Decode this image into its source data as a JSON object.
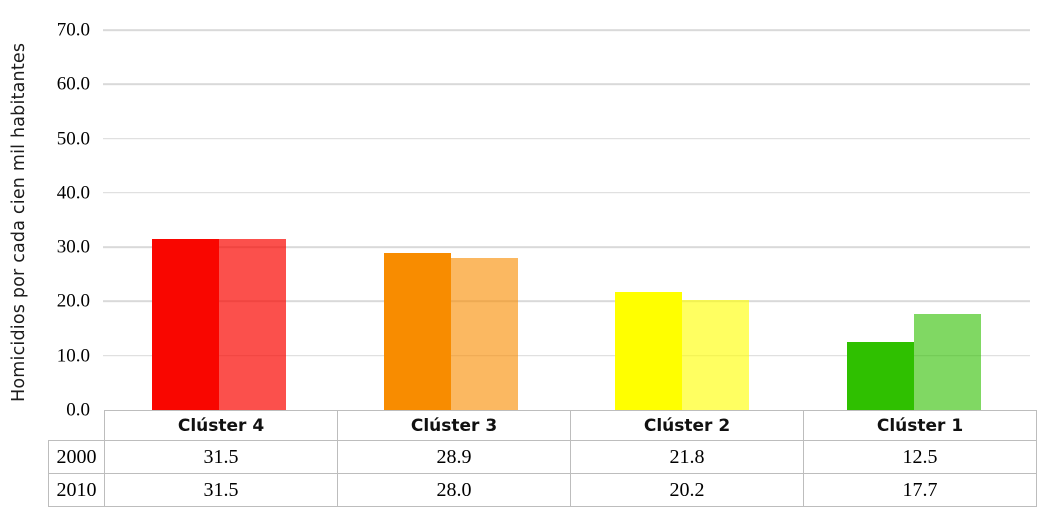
{
  "chart_data": {
    "type": "bar",
    "title": "",
    "xlabel": "",
    "ylabel": "Homicidios por cada cien mil habitantes",
    "ylim": [
      0,
      70
    ],
    "ytick_interval": 10,
    "ytick_labels": [
      "70.0",
      "60.0",
      "50.0",
      "40.0",
      "30.0",
      "20.0",
      "10.0",
      "0.0"
    ],
    "grid": "horizontal",
    "gridline_color": "#d9d9d9",
    "legend_position": "data-table-below-axis",
    "value_decimals": 1,
    "categories": [
      "Clúster 4",
      "Clúster 3",
      "Clúster 2",
      "Clúster 1"
    ],
    "series": [
      {
        "name": "2000",
        "values": [
          31.5,
          28.9,
          21.8,
          12.5
        ],
        "colors": [
          "#f90600",
          "#f88c00",
          "#ffff00",
          "#2fc000"
        ]
      },
      {
        "name": "2010",
        "values": [
          31.5,
          28.0,
          20.2,
          17.7
        ],
        "colors": [
          "rgba(249,6,0,0.70)",
          "rgba(248,140,0,0.62)",
          "rgba(255,255,0,0.62)",
          "rgba(47,192,0,0.61)"
        ]
      }
    ],
    "table_border_color": "#bdbdbd"
  }
}
